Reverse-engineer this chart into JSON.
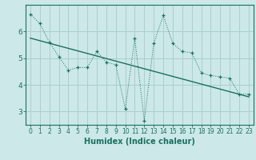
{
  "xlabel": "Humidex (Indice chaleur)",
  "bg_color": "#cce8e8",
  "line_color": "#1a7060",
  "grid_color": "#aacece",
  "xlim": [
    -0.5,
    23.5
  ],
  "ylim": [
    2.5,
    7.0
  ],
  "yticks": [
    3,
    4,
    5,
    6
  ],
  "xticks": [
    0,
    1,
    2,
    3,
    4,
    5,
    6,
    7,
    8,
    9,
    10,
    11,
    12,
    13,
    14,
    15,
    16,
    17,
    18,
    19,
    20,
    21,
    22,
    23
  ],
  "data_x": [
    0,
    1,
    2,
    3,
    4,
    5,
    6,
    7,
    8,
    9,
    10,
    11,
    12,
    13,
    14,
    15,
    16,
    17,
    18,
    19,
    20,
    21,
    22,
    23
  ],
  "data_y": [
    6.65,
    6.3,
    5.6,
    5.05,
    4.55,
    4.65,
    4.65,
    5.25,
    4.85,
    4.75,
    3.1,
    5.75,
    2.65,
    5.55,
    6.6,
    5.55,
    5.25,
    5.2,
    4.45,
    4.35,
    4.3,
    4.25,
    3.65,
    3.65
  ],
  "trend_x": [
    0,
    23
  ],
  "trend_y": [
    5.75,
    3.55
  ],
  "xlabel_fontsize": 7,
  "tick_fontsize": 5.5,
  "ytick_fontsize": 6.5
}
